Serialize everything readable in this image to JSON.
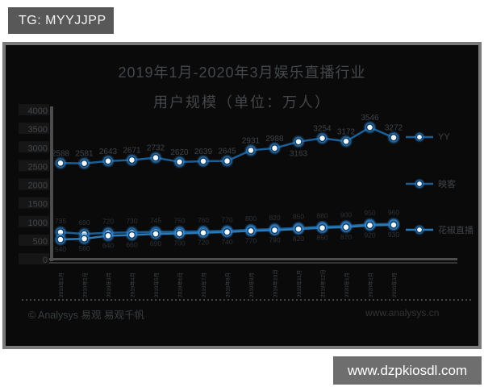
{
  "overlay": {
    "tag_label": "TG: MYYJJPP",
    "site_label": "www.dzpkiosdl.com"
  },
  "chart": {
    "title_line1": "2019年1月-2020年3月娱乐直播行业",
    "title_line2": "用户规模（单位：万人）",
    "footer_left": "© Analysys 易观 易观千帆",
    "footer_right": "www.analysys.cn"
  },
  "chart_data": {
    "type": "line",
    "title": "2019年1月-2020年3月娱乐直播行业用户规模（单位：万人）",
    "categories": [
      "2019年1月",
      "2019年2月",
      "2019年3月",
      "2019年4月",
      "2019年5月",
      "2019年6月",
      "2019年7月",
      "2019年8月",
      "2019年9月",
      "2019年10月",
      "2019年11月",
      "2019年12月",
      "2020年1月",
      "2020年2月",
      "2020年3月"
    ],
    "series": [
      {
        "name": "YY",
        "color": "#1a5e96",
        "values": [
          2588,
          2581,
          2643,
          2671,
          2732,
          2620,
          2639,
          2645,
          2931,
          2988,
          3163,
          3254,
          3172,
          3546,
          3272
        ]
      },
      {
        "name": "映客",
        "color": "#1a5e96",
        "values": [
          735,
          690,
          720,
          730,
          745,
          750,
          760,
          770,
          800,
          820,
          850,
          880,
          900,
          950,
          960
        ]
      },
      {
        "name": "花椒直播",
        "color": "#2a7ab8",
        "values": [
          540,
          560,
          640,
          660,
          690,
          700,
          720,
          740,
          770,
          790,
          820,
          850,
          870,
          920,
          930
        ]
      }
    ],
    "ylabel": "万人",
    "xlabel": "",
    "ylim": [
      0,
      4000
    ],
    "yticks": [
      0,
      500,
      1000,
      1500,
      2000,
      2500,
      3000,
      3500,
      4000
    ],
    "legend_position": "right",
    "grid": false
  }
}
